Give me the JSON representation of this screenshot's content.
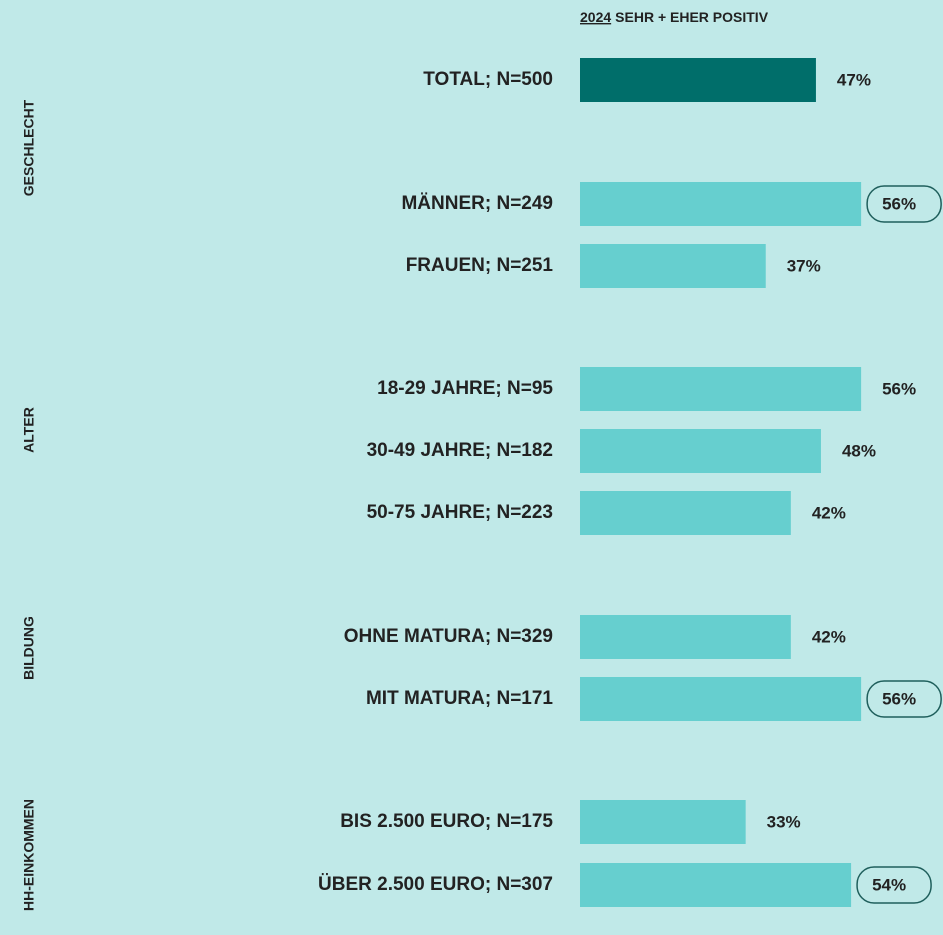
{
  "chart_data": {
    "type": "bar",
    "orientation": "horizontal",
    "year": "2024",
    "title": "SEHR + EHER POSITIV",
    "groups": [
      "GESCHLECHT",
      "ALTER",
      "BILDUNG",
      "HH-EINKOMMEN"
    ],
    "categories": [
      "TOTAL; N=500",
      "MÄNNER; N=249",
      "FRAUEN; N=251",
      "18-29 JAHRE; N=95",
      "30-49 JAHRE; N=182",
      "50-75 JAHRE; N=223",
      "OHNE MATURA; N=329",
      "MIT MATURA; N=171",
      "BIS 2.500 EURO; N=175",
      "ÜBER 2.500 EURO; N=307"
    ],
    "values": [
      47,
      56,
      37,
      56,
      48,
      42,
      42,
      56,
      33,
      54
    ],
    "value_labels": [
      "47%",
      "56%",
      "37%",
      "56%",
      "48%",
      "42%",
      "42%",
      "56%",
      "33%",
      "54%"
    ],
    "colors": [
      "#006e6a",
      "#66cfcf",
      "#66cfcf",
      "#66cfcf",
      "#66cfcf",
      "#66cfcf",
      "#66cfcf",
      "#66cfcf",
      "#66cfcf",
      "#66cfcf"
    ],
    "highlighted": [
      false,
      true,
      false,
      false,
      false,
      false,
      false,
      true,
      false,
      true
    ],
    "xlim": [
      0,
      100
    ]
  }
}
